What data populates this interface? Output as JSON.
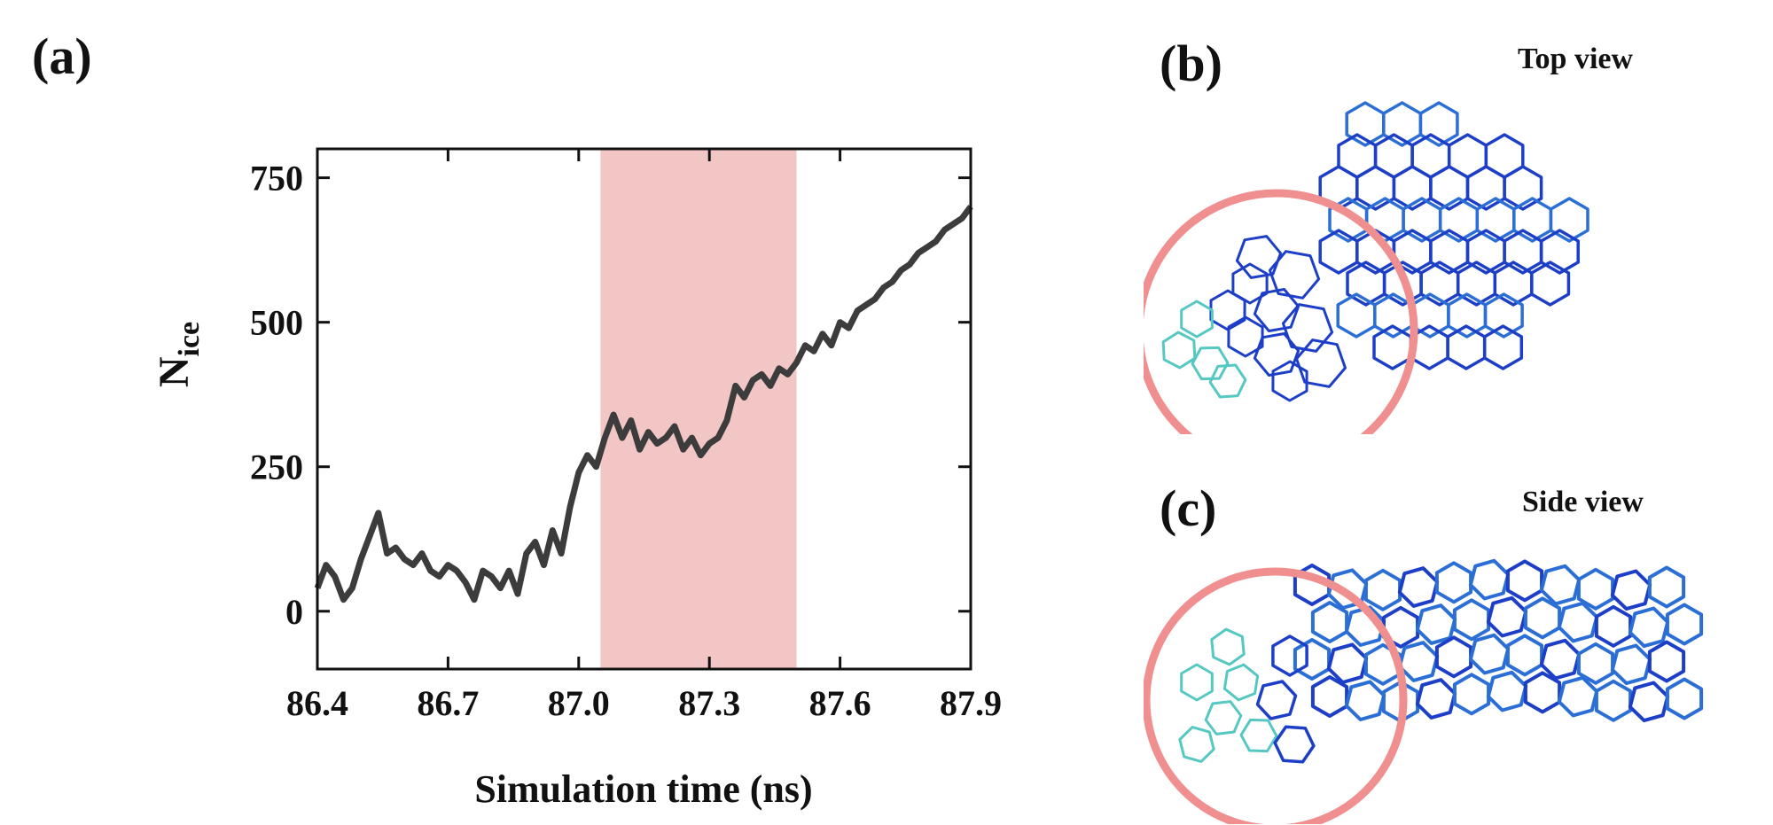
{
  "panels": {
    "a": {
      "label": "(a)"
    },
    "b": {
      "label": "(b)",
      "view_title": "Top view"
    },
    "c": {
      "label": "(c)",
      "view_title": "Side view"
    }
  },
  "colors": {
    "series": "#3c3c3c",
    "highlight": "#f3c6c6",
    "circle": "#f08f8f",
    "ice_dark": "#1d3fc8",
    "ice_mid": "#2b6fd6",
    "ice_light": "#3aa0e0",
    "ice_cyan": "#56c8c2"
  },
  "chart_data": {
    "type": "line",
    "title": "",
    "xlabel": "Simulation time (ns)",
    "ylabel_main": "N",
    "ylabel_sub": "ice",
    "xlim": [
      86.4,
      87.9
    ],
    "ylim": [
      -100,
      800
    ],
    "xticks": [
      86.4,
      86.7,
      87.0,
      87.3,
      87.6,
      87.9
    ],
    "xtick_labels": [
      "86.4",
      "86.7",
      "87.0",
      "87.3",
      "87.6",
      "87.9"
    ],
    "yticks": [
      0,
      250,
      500,
      750
    ],
    "ytick_labels": [
      "0",
      "250",
      "500",
      "750"
    ],
    "highlight_region": [
      87.05,
      87.5
    ],
    "series": [
      {
        "x": [
          86.4,
          86.42,
          86.44,
          86.46,
          86.48,
          86.5,
          86.52,
          86.54,
          86.56,
          86.58,
          86.6,
          86.62,
          86.64,
          86.66,
          86.68,
          86.7,
          86.72,
          86.74,
          86.76,
          86.78,
          86.8,
          86.82,
          86.84,
          86.86,
          86.88,
          86.9,
          86.92,
          86.94,
          86.96,
          86.98,
          87.0,
          87.02,
          87.04,
          87.06,
          87.08,
          87.1,
          87.12,
          87.14,
          87.16,
          87.18,
          87.2,
          87.22,
          87.24,
          87.26,
          87.28,
          87.3,
          87.32,
          87.34,
          87.36,
          87.38,
          87.4,
          87.42,
          87.44,
          87.46,
          87.48,
          87.5,
          87.52,
          87.54,
          87.56,
          87.58,
          87.6,
          87.62,
          87.64,
          87.66,
          87.68,
          87.7,
          87.72,
          87.74,
          87.76,
          87.78,
          87.8,
          87.82,
          87.84,
          87.86,
          87.88,
          87.9
        ],
        "y": [
          40,
          80,
          60,
          20,
          40,
          90,
          130,
          170,
          100,
          110,
          90,
          80,
          100,
          70,
          60,
          80,
          70,
          50,
          20,
          70,
          60,
          40,
          70,
          30,
          100,
          120,
          80,
          140,
          100,
          180,
          240,
          270,
          250,
          300,
          340,
          300,
          330,
          280,
          310,
          290,
          300,
          320,
          280,
          300,
          270,
          290,
          300,
          330,
          390,
          370,
          400,
          410,
          390,
          420,
          410,
          430,
          460,
          450,
          480,
          460,
          500,
          490,
          520,
          530,
          540,
          560,
          570,
          590,
          600,
          620,
          630,
          640,
          660,
          670,
          680,
          700
        ]
      }
    ]
  }
}
